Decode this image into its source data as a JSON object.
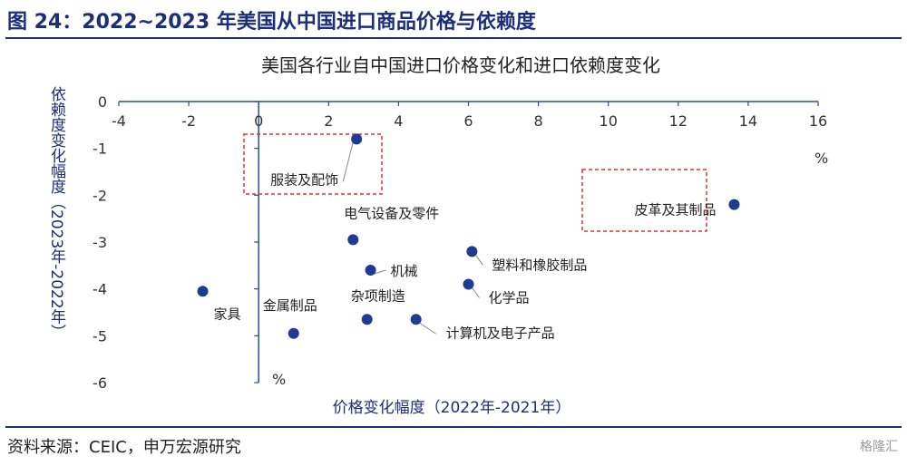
{
  "figure": {
    "title": "图 24：2022~2023 年美国从中国进口商品价格与依赖度",
    "source": "资料来源：CEIC，申万宏源研究",
    "watermark": "格隆汇"
  },
  "chart_data": {
    "type": "scatter",
    "title": "美国各行业自中国进口价格变化和进口依赖度变化",
    "xlabel": "价格变化幅度（2022年-2021年）",
    "ylabel": "依赖度变化幅度（2023年-2022年）",
    "x_unit": "%",
    "y_unit": "%",
    "xlim": [
      -4,
      16
    ],
    "ylim": [
      -6,
      0
    ],
    "xticks": [
      "-4",
      "-2",
      "0",
      "2",
      "4",
      "6",
      "8",
      "10",
      "12",
      "14",
      "16"
    ],
    "yticks": [
      "0",
      "-1",
      "-2",
      "-3",
      "-4",
      "-5",
      "-6"
    ],
    "grid": false,
    "marker_color": "#1f3a93",
    "highlight_color": "#e03030",
    "points": [
      {
        "label": "服装及配饰",
        "x": 2.8,
        "y": -0.8,
        "highlight": true
      },
      {
        "label": "皮革及其制品",
        "x": 13.6,
        "y": -2.2,
        "highlight": true
      },
      {
        "label": "电气设备及零件",
        "x": 2.7,
        "y": -2.95,
        "highlight": false
      },
      {
        "label": "机械",
        "x": 3.2,
        "y": -3.6,
        "highlight": false
      },
      {
        "label": "塑料和橡胶制品",
        "x": 6.1,
        "y": -3.2,
        "highlight": false
      },
      {
        "label": "化学品",
        "x": 6.0,
        "y": -3.9,
        "highlight": false
      },
      {
        "label": "家具",
        "x": -1.6,
        "y": -4.05,
        "highlight": false
      },
      {
        "label": "杂项制造",
        "x": 3.1,
        "y": -4.65,
        "highlight": false
      },
      {
        "label": "金属制品",
        "x": 1.0,
        "y": -4.95,
        "highlight": false
      },
      {
        "label": "计算机及电子产品",
        "x": 4.5,
        "y": -4.65,
        "highlight": false
      }
    ]
  }
}
